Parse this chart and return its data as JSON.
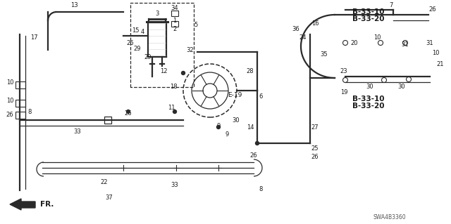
{
  "bg_color": "#ffffff",
  "line_color": "#2a2a2a",
  "text_color": "#1a1a1a",
  "labels": {
    "B3310_top": "B-33-10",
    "B3320_top": "B-33-20",
    "B3310_bot": "B-33-10",
    "B3320_bot": "B-33-20",
    "E19": "E-19",
    "FR": "FR.",
    "diagram_id": "SWA4B3360"
  }
}
